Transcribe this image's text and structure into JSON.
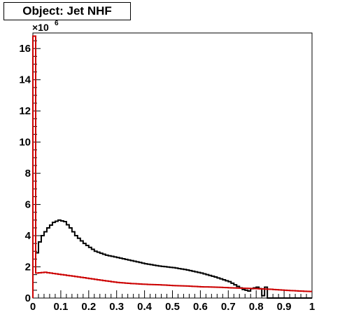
{
  "chart_data": {
    "type": "histogram-step",
    "title": "Object: Jet NHF",
    "xlim": [
      0,
      1
    ],
    "ylim": [
      0,
      17
    ],
    "y_multiplier_base": "×10",
    "y_multiplier_exponent": "6",
    "x_ticks": [
      0,
      0.1,
      0.2,
      0.3,
      0.4,
      0.5,
      0.6,
      0.7,
      0.8,
      0.9,
      1
    ],
    "x_tick_labels": [
      "0",
      "0.1",
      "0.2",
      "0.3",
      "0.4",
      "0.5",
      "0.6",
      "0.7",
      "0.8",
      "0.9",
      "1"
    ],
    "y_ticks": [
      0,
      2,
      4,
      6,
      8,
      10,
      12,
      14,
      16
    ],
    "y_tick_labels": [
      "0",
      "2",
      "4",
      "6",
      "8",
      "10",
      "12",
      "14",
      "16"
    ],
    "bin_width": 0.01,
    "series": [
      {
        "color": "#000000",
        "points": [
          [
            0,
            16.8
          ],
          [
            0.01,
            2.9
          ],
          [
            0.02,
            3.6
          ],
          [
            0.03,
            4.0
          ],
          [
            0.05,
            4.5
          ],
          [
            0.07,
            4.85
          ],
          [
            0.09,
            5.0
          ],
          [
            0.11,
            4.9
          ],
          [
            0.13,
            4.5
          ],
          [
            0.15,
            4.0
          ],
          [
            0.18,
            3.5
          ],
          [
            0.22,
            3.0
          ],
          [
            0.26,
            2.75
          ],
          [
            0.3,
            2.6
          ],
          [
            0.35,
            2.4
          ],
          [
            0.4,
            2.2
          ],
          [
            0.45,
            2.05
          ],
          [
            0.5,
            1.95
          ],
          [
            0.55,
            1.8
          ],
          [
            0.6,
            1.6
          ],
          [
            0.65,
            1.35
          ],
          [
            0.7,
            1.05
          ],
          [
            0.73,
            0.75
          ],
          [
            0.75,
            0.55
          ],
          [
            0.77,
            0.45
          ],
          [
            0.78,
            0.6
          ],
          [
            0.8,
            0.7
          ],
          [
            0.81,
            0.6
          ],
          [
            0.82,
            0.15
          ],
          [
            0.83,
            0.7
          ],
          [
            0.84,
            0.0
          ],
          [
            0.99,
            0.0
          ]
        ]
      },
      {
        "color": "#cc0000",
        "points": [
          [
            0,
            16.8
          ],
          [
            0.01,
            1.6
          ],
          [
            0.02,
            1.62
          ],
          [
            0.04,
            1.65
          ],
          [
            0.06,
            1.6
          ],
          [
            0.1,
            1.5
          ],
          [
            0.15,
            1.38
          ],
          [
            0.2,
            1.25
          ],
          [
            0.25,
            1.12
          ],
          [
            0.3,
            1.0
          ],
          [
            0.35,
            0.93
          ],
          [
            0.4,
            0.88
          ],
          [
            0.45,
            0.85
          ],
          [
            0.5,
            0.8
          ],
          [
            0.55,
            0.77
          ],
          [
            0.6,
            0.72
          ],
          [
            0.65,
            0.7
          ],
          [
            0.7,
            0.66
          ],
          [
            0.75,
            0.63
          ],
          [
            0.8,
            0.6
          ],
          [
            0.85,
            0.56
          ],
          [
            0.9,
            0.5
          ],
          [
            0.95,
            0.45
          ],
          [
            0.99,
            0.42
          ]
        ]
      }
    ]
  }
}
